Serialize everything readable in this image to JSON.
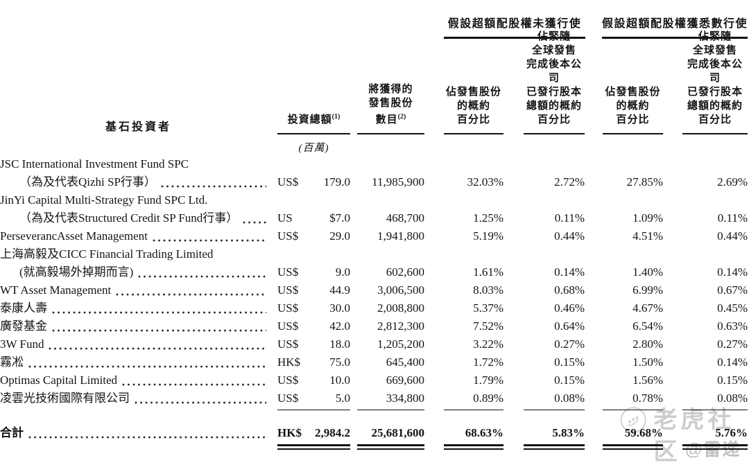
{
  "page": {
    "background": "#ffffff",
    "text_color": "#141414"
  },
  "header": {
    "span_no_exercise": "假設超額配股權未獲行使",
    "span_full_exercise": "假設超額配股權獲悉數行使",
    "investors_label": "基石投資者",
    "investment_label": "投資總額",
    "investment_footnote": "(1)",
    "investment_unit": "(百萬)",
    "shares_lines": "將獲得的\n發售股份",
    "shares_last_word": "數目",
    "shares_footnote": "(2)",
    "pct_offer_lines": "佔發售股份\n的概約\n百分比",
    "pct_total_lines": "佔緊隨\n全球發售\n完成後本公司\n已發行股本\n總額的概約\n百分比"
  },
  "table": {
    "rows": [
      {
        "line1": "JSC International Investment Fund SPC",
        "name": "（為及代表Qizhi SP行事）",
        "currency": "US$",
        "amount": "179.0",
        "shares": "11,985,900",
        "pct": [
          "32.03%",
          "2.72%",
          "27.85%",
          "2.69%"
        ]
      },
      {
        "line1": "JinYi Capital Multi-Strategy Fund SPC Ltd.",
        "name": "（為及代表Structured Credit SP Fund行事）",
        "currency": "US",
        "amount": "$7.0",
        "shares": "468,700",
        "pct": [
          "1.25%",
          "0.11%",
          "1.09%",
          "0.11%"
        ]
      },
      {
        "line1": "",
        "name": "PerseverancAsset Management",
        "currency": "US$",
        "amount": "29.0",
        "shares": "1,941,800",
        "pct": [
          "5.19%",
          "0.44%",
          "4.51%",
          "0.44%"
        ]
      },
      {
        "line1": "上海高毅及CICC Financial Trading Limited",
        "name": "(就高毅場外掉期而言)",
        "currency": "US$",
        "amount": "9.0",
        "shares": "602,600",
        "pct": [
          "1.61%",
          "0.14%",
          "1.40%",
          "0.14%"
        ]
      },
      {
        "line1": "",
        "name": "WT Asset Management",
        "currency": "US$",
        "amount": "44.9",
        "shares": "3,006,500",
        "pct": [
          "8.03%",
          "0.68%",
          "6.99%",
          "0.67%"
        ]
      },
      {
        "line1": "",
        "name": "泰康人壽",
        "currency": "US$",
        "amount": "30.0",
        "shares": "2,008,800",
        "pct": [
          "5.37%",
          "0.46%",
          "4.67%",
          "0.45%"
        ]
      },
      {
        "line1": "",
        "name": "廣發基金",
        "currency": "US$",
        "amount": "42.0",
        "shares": "2,812,300",
        "pct": [
          "7.52%",
          "0.64%",
          "6.54%",
          "0.63%"
        ]
      },
      {
        "line1": "",
        "name": "3W Fund",
        "currency": "US$",
        "amount": "18.0",
        "shares": "1,205,200",
        "pct": [
          "3.22%",
          "0.27%",
          "2.80%",
          "0.27%"
        ]
      },
      {
        "line1": "",
        "name": "霧凇",
        "currency": "HK$",
        "amount": "75.0",
        "shares": "645,400",
        "pct": [
          "1.72%",
          "0.15%",
          "1.50%",
          "0.14%"
        ]
      },
      {
        "line1": "",
        "name": "Optimas Capital Limited",
        "currency": "US$",
        "amount": "10.0",
        "shares": "669,600",
        "pct": [
          "1.79%",
          "0.15%",
          "1.56%",
          "0.15%"
        ]
      },
      {
        "line1": "",
        "name": "凌雲光技術國際有限公司",
        "currency": "US$",
        "amount": "5.0",
        "shares": "334,800",
        "pct": [
          "0.89%",
          "0.08%",
          "0.78%",
          "0.08%"
        ]
      }
    ],
    "total": {
      "label": "合計",
      "currency": "HK$",
      "amount": "2,984.2",
      "shares": "25,681,600",
      "pct": [
        "68.63%",
        "5.83%",
        "59.68%",
        "5.76%"
      ]
    }
  },
  "watermark": {
    "community": "老虎社区",
    "handle": "@雷递",
    "color": "#cdcdcd"
  }
}
